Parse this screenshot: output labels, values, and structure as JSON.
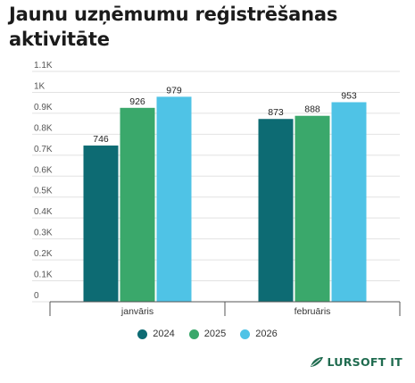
{
  "title": "Jaunu uzņēmumu reģistrēšanas aktivitāte",
  "chart_data": {
    "type": "bar",
    "categories": [
      "janvāris",
      "februāris"
    ],
    "series": [
      {
        "name": "2024",
        "values": [
          746,
          873
        ],
        "labels": [
          "746",
          "873"
        ],
        "color": "#0d6b73"
      },
      {
        "name": "2025",
        "values": [
          926,
          888
        ],
        "labels": [
          "926",
          "888"
        ],
        "color": "#3aa86b"
      },
      {
        "name": "2026",
        "values": [
          979,
          953
        ],
        "labels": [
          "979",
          "953"
        ],
        "color": "#4fc3e6"
      }
    ],
    "ylim": [
      0,
      1100
    ],
    "yticks": [
      0,
      100,
      200,
      300,
      400,
      500,
      600,
      700,
      800,
      900,
      1000,
      1100
    ],
    "ytick_labels": [
      "0",
      "0.1K",
      "0.2K",
      "0.3K",
      "0.4K",
      "0.5K",
      "0.6K",
      "0.7K",
      "0.8K",
      "0.9K",
      "1K",
      "1.1K"
    ],
    "grid": true,
    "legend_position": "bottom"
  },
  "logo": {
    "text": "LURSOFT IT",
    "color": "#1f6b4f"
  }
}
